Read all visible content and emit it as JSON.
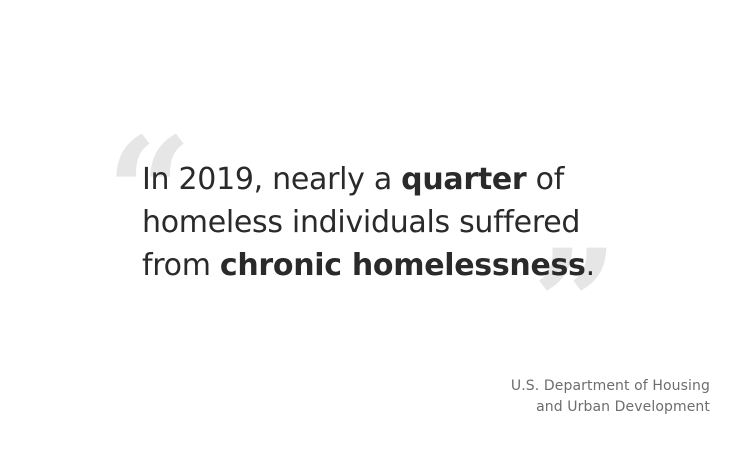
{
  "quote": {
    "open_mark": "“",
    "close_mark": "”",
    "line1_pre": "In 2019, nearly a ",
    "line1_bold": "quarter",
    "line1_post": " of",
    "line2": "homeless individuals suffered",
    "line3_pre": "from ",
    "line3_bold": "chronic homelessness",
    "line3_post": "."
  },
  "source": {
    "line1": "U.S. Department of Housing",
    "line2": "and Urban Development"
  },
  "colors": {
    "text": "#2a2a2a",
    "quote_marks": "#e6e6e6",
    "source": "#6d6d6d",
    "background": "#ffffff"
  }
}
